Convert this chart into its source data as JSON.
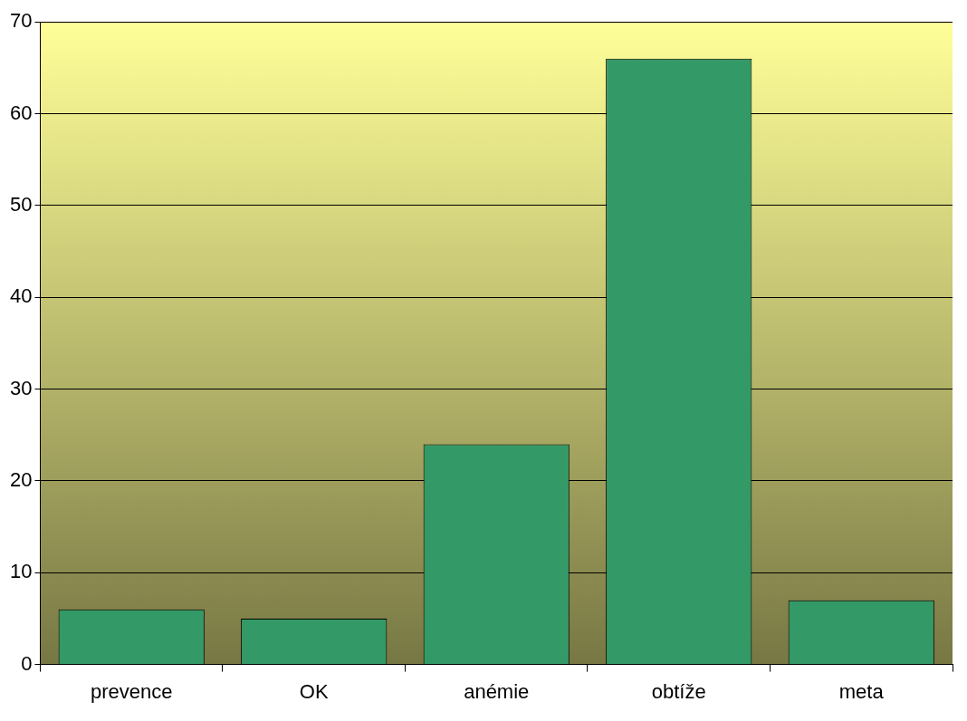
{
  "chart_data": {
    "type": "bar",
    "categories": [
      "prevence",
      "OK",
      "anémie",
      "obtíže",
      "meta"
    ],
    "values": [
      6,
      5,
      24,
      66,
      7
    ],
    "color": "#339966",
    "ylim": [
      0,
      70
    ],
    "yticks": [
      0,
      10,
      20,
      30,
      40,
      50,
      60,
      70
    ],
    "grid": "y",
    "legend": false
  }
}
